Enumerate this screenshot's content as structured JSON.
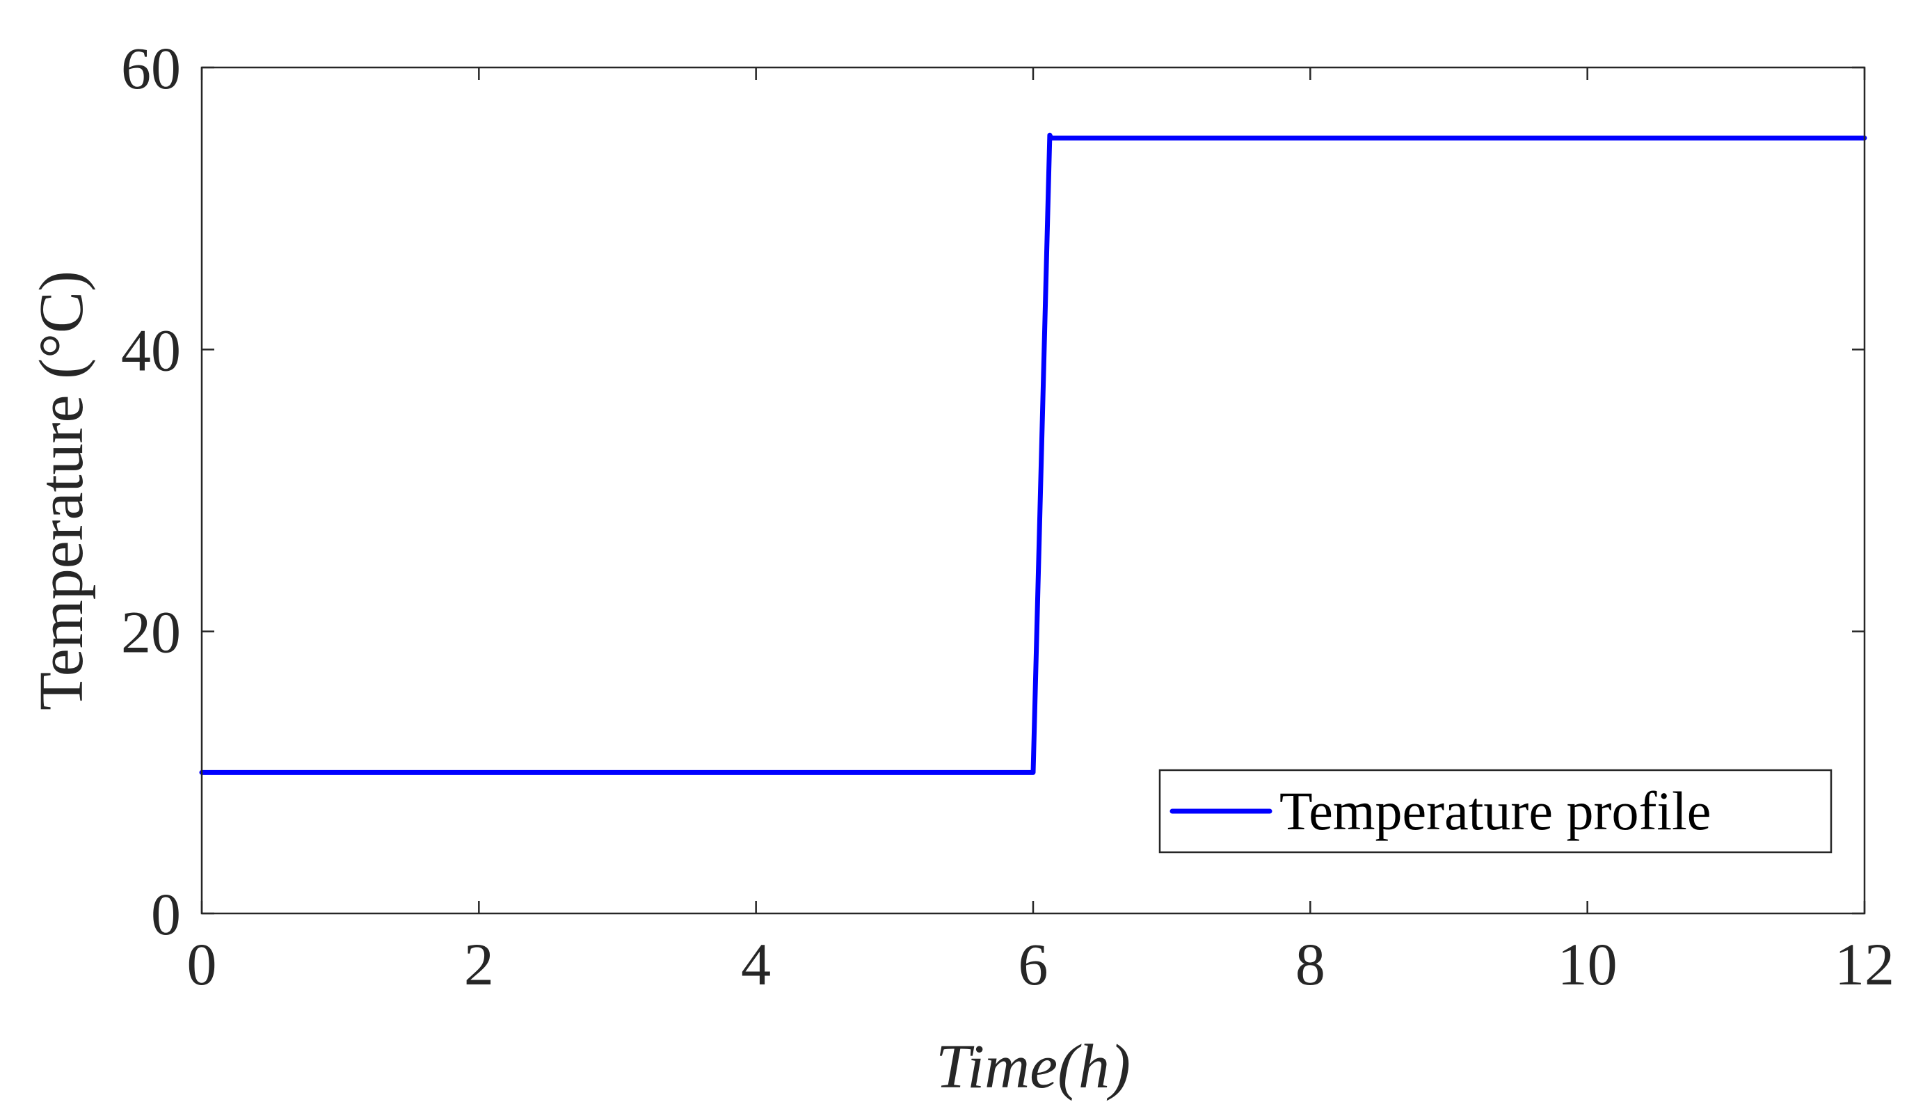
{
  "chart_data": {
    "type": "line",
    "title": "",
    "xlabel": "Time(h)",
    "ylabel": "Temperature (°C)",
    "xlim": [
      0,
      12
    ],
    "ylim": [
      0,
      60
    ],
    "xticks": [
      0,
      2,
      4,
      6,
      8,
      10,
      12
    ],
    "yticks": [
      0,
      20,
      40,
      60
    ],
    "grid": false,
    "box": true,
    "legend": {
      "placement": "bottom-right",
      "entries": [
        "Temperature profile"
      ]
    },
    "series": [
      {
        "name": "Temperature profile",
        "color": "#0000FF",
        "x": [
          0,
          6.0,
          6.12,
          6.13,
          12
        ],
        "y": [
          10,
          10,
          55.2,
          55,
          55
        ]
      }
    ]
  }
}
